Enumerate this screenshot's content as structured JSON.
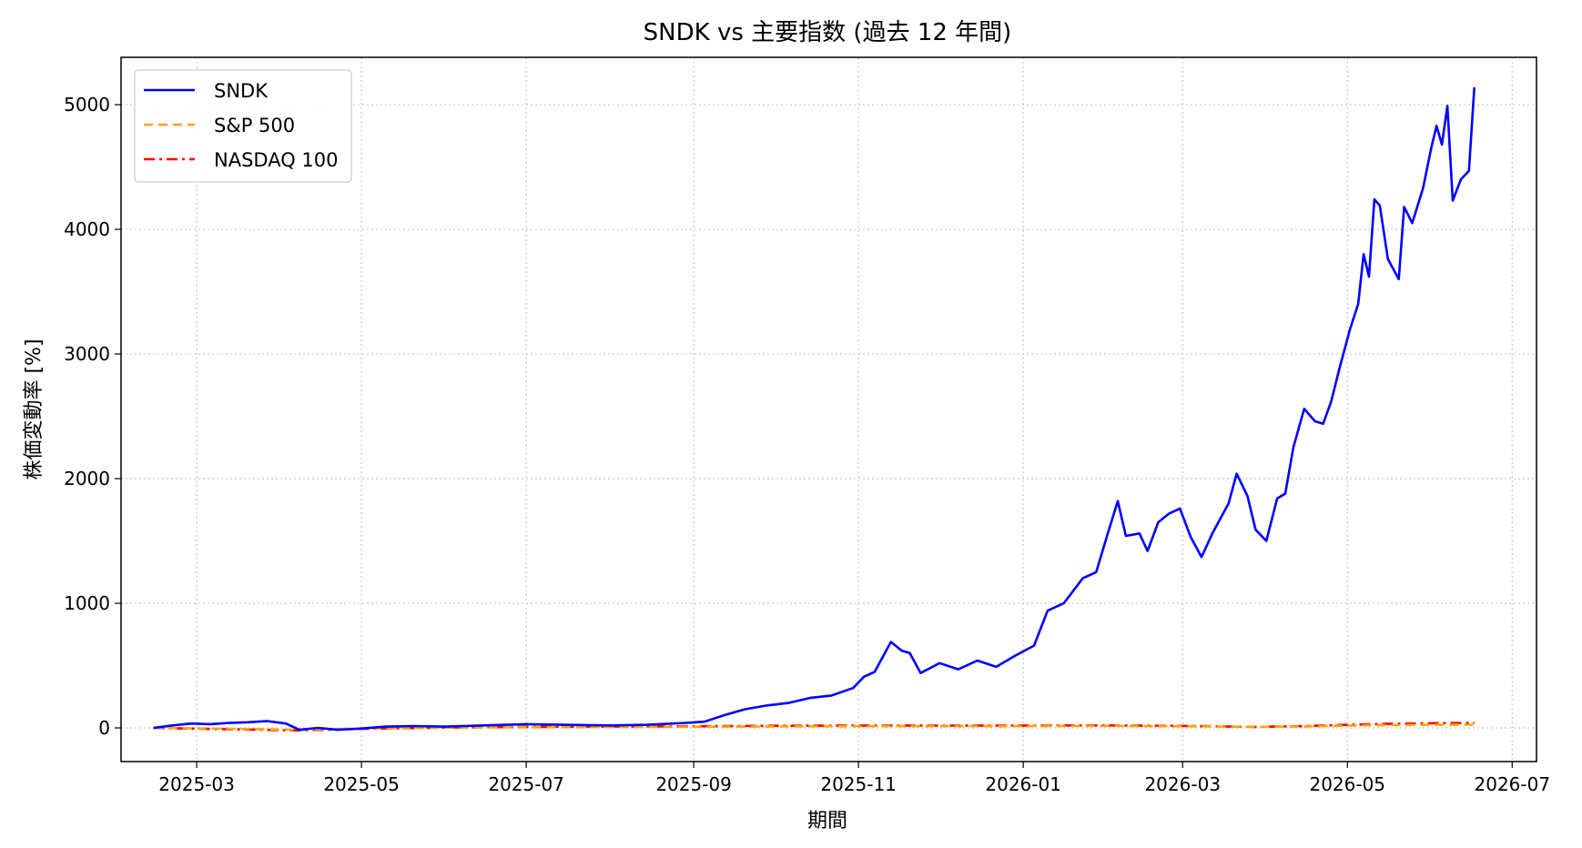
{
  "chart_data": {
    "type": "line",
    "title": "SNDK vs 主要指数 (過去 12 年間)",
    "xlabel": "期間",
    "ylabel": "株価変動率 [%]",
    "xlim": [
      "2025-02-01",
      "2026-07-10"
    ],
    "ylim": [
      -270,
      5380
    ],
    "grid": true,
    "legend_position": "top-left",
    "x_ticks": [
      "2025-03-01",
      "2025-05-01",
      "2025-07-01",
      "2025-09-01",
      "2025-11-01",
      "2026-01-01",
      "2026-03-01",
      "2026-05-01",
      "2026-07-01"
    ],
    "x_tick_labels": [
      "2025-03",
      "2025-05",
      "2025-07",
      "2025-09",
      "2025-11",
      "2026-01",
      "2026-03",
      "2026-05",
      "2026-07"
    ],
    "y_ticks": [
      0,
      1000,
      2000,
      3000,
      4000,
      5000
    ],
    "y_tick_labels": [
      "0",
      "1000",
      "2000",
      "3000",
      "4000",
      "5000"
    ],
    "series": [
      {
        "name": "SNDK",
        "color": "#0000ff",
        "style": "solid",
        "points": [
          [
            "2025-02-13",
            0
          ],
          [
            "2025-02-20",
            20
          ],
          [
            "2025-02-27",
            35
          ],
          [
            "2025-03-06",
            30
          ],
          [
            "2025-03-13",
            40
          ],
          [
            "2025-03-20",
            45
          ],
          [
            "2025-03-27",
            55
          ],
          [
            "2025-04-03",
            35
          ],
          [
            "2025-04-08",
            -15
          ],
          [
            "2025-04-15",
            0
          ],
          [
            "2025-04-22",
            -15
          ],
          [
            "2025-05-01",
            -5
          ],
          [
            "2025-05-10",
            10
          ],
          [
            "2025-05-20",
            15
          ],
          [
            "2025-06-01",
            10
          ],
          [
            "2025-06-15",
            20
          ],
          [
            "2025-07-01",
            30
          ],
          [
            "2025-07-15",
            25
          ],
          [
            "2025-08-01",
            20
          ],
          [
            "2025-08-15",
            25
          ],
          [
            "2025-08-29",
            40
          ],
          [
            "2025-09-05",
            50
          ],
          [
            "2025-09-12",
            100
          ],
          [
            "2025-09-20",
            150
          ],
          [
            "2025-09-28",
            180
          ],
          [
            "2025-10-06",
            200
          ],
          [
            "2025-10-14",
            240
          ],
          [
            "2025-10-22",
            260
          ],
          [
            "2025-10-30",
            320
          ],
          [
            "2025-11-03",
            410
          ],
          [
            "2025-11-07",
            450
          ],
          [
            "2025-11-13",
            690
          ],
          [
            "2025-11-17",
            620
          ],
          [
            "2025-11-20",
            600
          ],
          [
            "2025-11-24",
            440
          ],
          [
            "2025-12-01",
            520
          ],
          [
            "2025-12-08",
            470
          ],
          [
            "2025-12-15",
            540
          ],
          [
            "2025-12-22",
            490
          ],
          [
            "2025-12-29",
            580
          ],
          [
            "2026-01-05",
            660
          ],
          [
            "2026-01-10",
            940
          ],
          [
            "2026-01-16",
            1000
          ],
          [
            "2026-01-23",
            1200
          ],
          [
            "2026-01-28",
            1250
          ],
          [
            "2026-02-01",
            1540
          ],
          [
            "2026-02-05",
            1820
          ],
          [
            "2026-02-08",
            1540
          ],
          [
            "2026-02-13",
            1560
          ],
          [
            "2026-02-16",
            1420
          ],
          [
            "2026-02-20",
            1650
          ],
          [
            "2026-02-24",
            1720
          ],
          [
            "2026-02-28",
            1760
          ],
          [
            "2026-03-04",
            1530
          ],
          [
            "2026-03-08",
            1370
          ],
          [
            "2026-03-12",
            1560
          ],
          [
            "2026-03-18",
            1800
          ],
          [
            "2026-03-21",
            2040
          ],
          [
            "2026-03-25",
            1860
          ],
          [
            "2026-03-28",
            1590
          ],
          [
            "2026-04-01",
            1500
          ],
          [
            "2026-04-05",
            1840
          ],
          [
            "2026-04-08",
            1880
          ],
          [
            "2026-04-11",
            2250
          ],
          [
            "2026-04-15",
            2560
          ],
          [
            "2026-04-19",
            2460
          ],
          [
            "2026-04-22",
            2440
          ],
          [
            "2026-04-25",
            2620
          ],
          [
            "2026-04-28",
            2880
          ],
          [
            "2026-05-02",
            3200
          ],
          [
            "2026-05-05",
            3400
          ],
          [
            "2026-05-07",
            3800
          ],
          [
            "2026-05-09",
            3620
          ],
          [
            "2026-05-11",
            4240
          ],
          [
            "2026-05-13",
            4190
          ],
          [
            "2026-05-16",
            3760
          ],
          [
            "2026-05-20",
            3600
          ],
          [
            "2026-05-22",
            4180
          ],
          [
            "2026-05-25",
            4050
          ],
          [
            "2026-05-29",
            4330
          ],
          [
            "2026-06-01",
            4650
          ],
          [
            "2026-06-03",
            4830
          ],
          [
            "2026-06-05",
            4680
          ],
          [
            "2026-06-07",
            4990
          ],
          [
            "2026-06-09",
            4230
          ],
          [
            "2026-06-12",
            4400
          ],
          [
            "2026-06-15",
            4470
          ],
          [
            "2026-06-17",
            5140
          ]
        ]
      },
      {
        "name": "S&P 500",
        "color": "#ffa500",
        "style": "dashed",
        "points": [
          [
            "2025-02-13",
            0
          ],
          [
            "2025-03-05",
            -5
          ],
          [
            "2025-04-08",
            -15
          ],
          [
            "2025-05-01",
            -5
          ],
          [
            "2025-06-01",
            2
          ],
          [
            "2025-07-01",
            5
          ],
          [
            "2025-08-01",
            7
          ],
          [
            "2025-09-01",
            9
          ],
          [
            "2025-10-01",
            12
          ],
          [
            "2025-11-01",
            14
          ],
          [
            "2025-12-01",
            14
          ],
          [
            "2026-01-01",
            15
          ],
          [
            "2026-02-01",
            16
          ],
          [
            "2026-03-01",
            13
          ],
          [
            "2026-03-28",
            8
          ],
          [
            "2026-04-15",
            12
          ],
          [
            "2026-05-01",
            18
          ],
          [
            "2026-05-15",
            22
          ],
          [
            "2026-06-01",
            25
          ],
          [
            "2026-06-17",
            26
          ]
        ]
      },
      {
        "name": "NASDAQ 100",
        "color": "#ff0000",
        "style": "dashdot",
        "points": [
          [
            "2025-02-13",
            0
          ],
          [
            "2025-03-05",
            -8
          ],
          [
            "2025-04-08",
            -20
          ],
          [
            "2025-05-01",
            -8
          ],
          [
            "2025-06-01",
            3
          ],
          [
            "2025-07-01",
            8
          ],
          [
            "2025-08-01",
            11
          ],
          [
            "2025-09-01",
            13
          ],
          [
            "2025-10-01",
            17
          ],
          [
            "2025-11-01",
            19
          ],
          [
            "2025-12-01",
            18
          ],
          [
            "2026-01-01",
            19
          ],
          [
            "2026-02-01",
            20
          ],
          [
            "2026-03-01",
            16
          ],
          [
            "2026-03-28",
            8
          ],
          [
            "2026-04-15",
            15
          ],
          [
            "2026-05-01",
            25
          ],
          [
            "2026-05-15",
            32
          ],
          [
            "2026-06-01",
            37
          ],
          [
            "2026-06-17",
            40
          ]
        ]
      }
    ]
  }
}
